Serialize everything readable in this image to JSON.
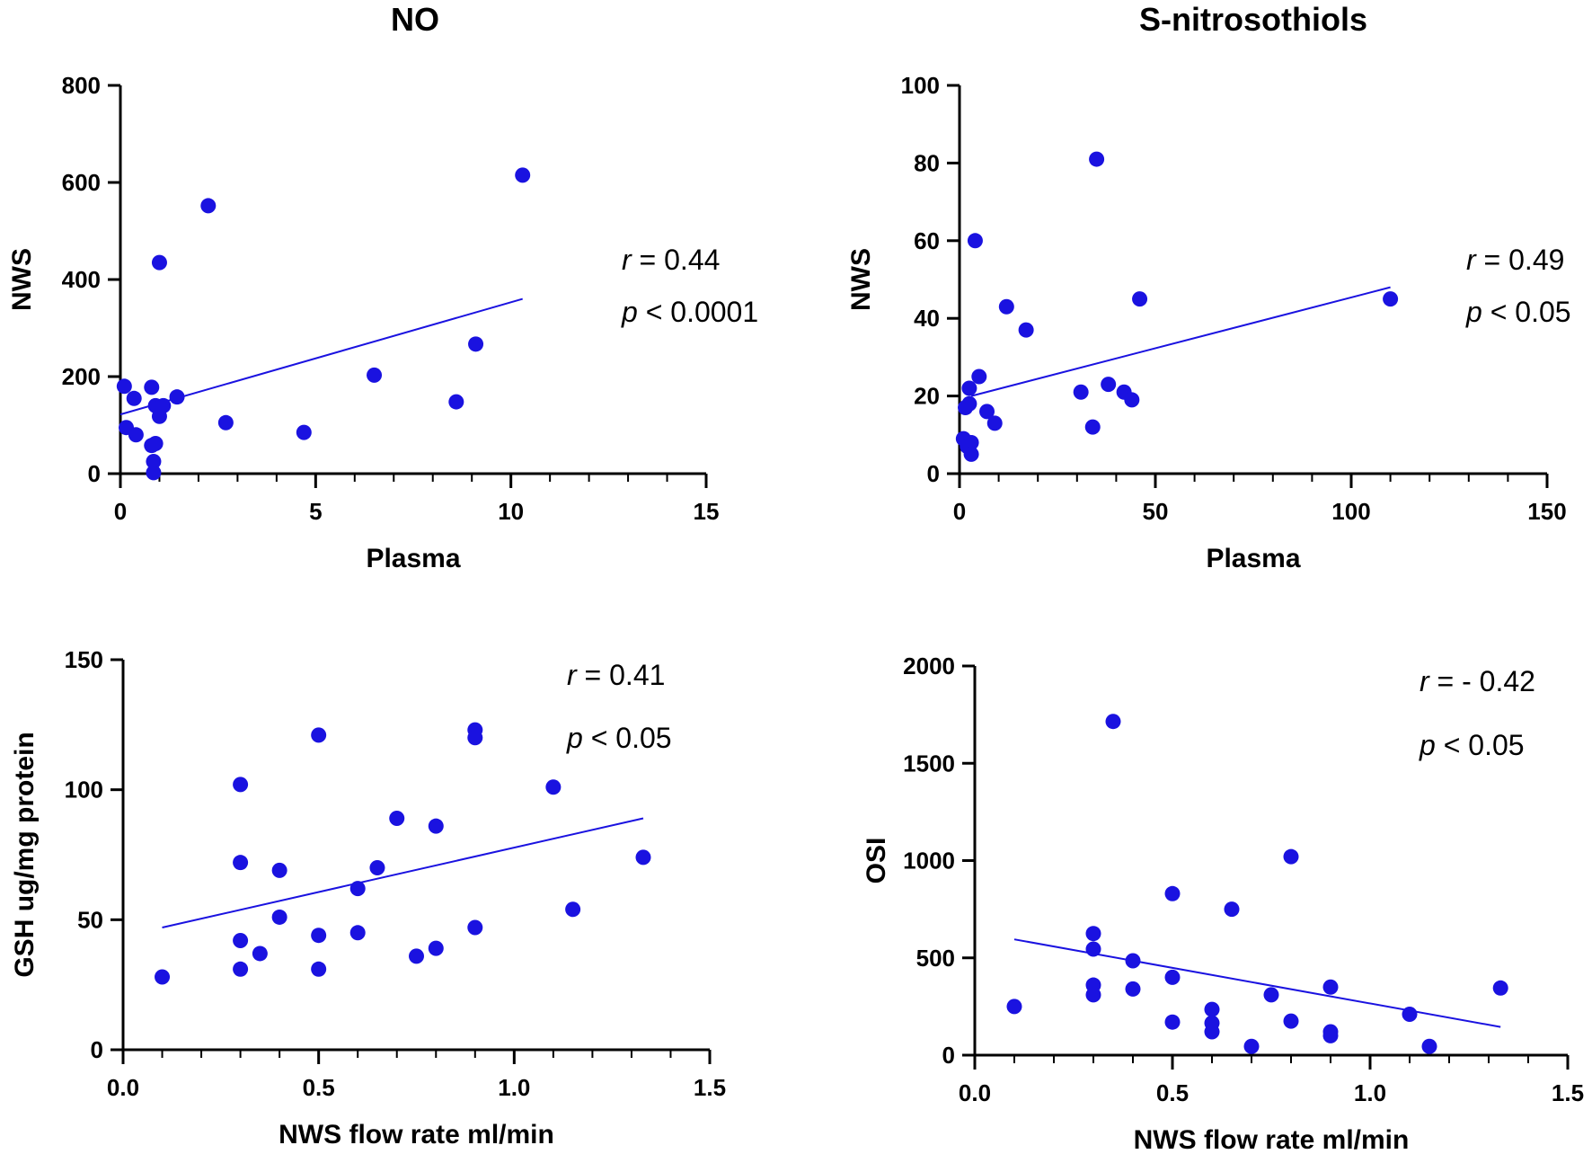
{
  "column_titles": [
    "NO",
    "S-nitrosothiols"
  ],
  "chart_data": [
    {
      "type": "scatter",
      "column": "NO",
      "xlabel": "Plasma",
      "ylabel": "NWS",
      "xlim": [
        0,
        15
      ],
      "ylim": [
        0,
        800
      ],
      "xticks": [
        "0",
        "5",
        "10",
        "15"
      ],
      "yticks": [
        "0",
        "200",
        "400",
        "600",
        "800"
      ],
      "x": [
        0.1,
        0.15,
        0.35,
        0.4,
        0.8,
        0.8,
        0.85,
        0.85,
        0.9,
        0.9,
        1.0,
        1.0,
        1.0,
        1.1,
        1.45,
        2.25,
        2.7,
        4.7,
        6.5,
        8.6,
        9.1,
        10.3
      ],
      "y": [
        180,
        95,
        155,
        80,
        58,
        178,
        25,
        2,
        140,
        62,
        435,
        118,
        135,
        140,
        158,
        552,
        105,
        85,
        203,
        148,
        267,
        615
      ],
      "fit_line": {
        "x": [
          0,
          10.3
        ],
        "y": [
          122,
          360
        ]
      },
      "stats": {
        "r_label": "r",
        "r_value": "= 0.44",
        "p_label": "p",
        "p_value": "< 0.0001"
      }
    },
    {
      "type": "scatter",
      "column": "S-nitrosothiols",
      "xlabel": "Plasma",
      "ylabel": "NWS",
      "xlim": [
        0,
        150
      ],
      "ylim": [
        0,
        100
      ],
      "xticks": [
        "0",
        "50",
        "100",
        "150"
      ],
      "yticks": [
        "0",
        "20",
        "40",
        "60",
        "80",
        "100"
      ],
      "x": [
        1,
        1.5,
        2,
        2.5,
        2.5,
        3,
        3,
        4,
        5,
        7,
        9,
        12,
        17,
        31,
        34,
        35,
        38,
        42,
        44,
        46,
        110
      ],
      "y": [
        9,
        17,
        7,
        22,
        18,
        8,
        5,
        60,
        25,
        16,
        13,
        43,
        37,
        21,
        12,
        81,
        23,
        21,
        19,
        45,
        45
      ],
      "fit_line": {
        "x": [
          3,
          110
        ],
        "y": [
          20,
          48
        ]
      },
      "stats": {
        "r_label": "r",
        "r_value": "= 0.49",
        "p_label": "p",
        "p_value": "< 0.05"
      }
    },
    {
      "type": "scatter",
      "column": "NO",
      "xlabel": "NWS flow rate ml/min",
      "ylabel": "GSH ug/mg protein",
      "xlim": [
        0,
        1.5
      ],
      "ylim": [
        0,
        150
      ],
      "xticks": [
        "0.0",
        "0.5",
        "1.0",
        "1.5"
      ],
      "yticks": [
        "0",
        "50",
        "100",
        "150"
      ],
      "x": [
        0.1,
        0.3,
        0.3,
        0.3,
        0.3,
        0.35,
        0.4,
        0.4,
        0.5,
        0.5,
        0.5,
        0.6,
        0.6,
        0.65,
        0.7,
        0.75,
        0.8,
        0.8,
        0.9,
        0.9,
        0.9,
        1.1,
        1.15,
        1.33
      ],
      "y": [
        28,
        102,
        72,
        42,
        31,
        37,
        69,
        51,
        121,
        44,
        31,
        62,
        45,
        70,
        89,
        36,
        86,
        39,
        123,
        120,
        47,
        101,
        54,
        74
      ],
      "fit_line": {
        "x": [
          0.1,
          1.33
        ],
        "y": [
          47,
          89
        ]
      },
      "stats": {
        "r_label": "r",
        "r_value": "= 0.41",
        "p_label": "p",
        "p_value": "< 0.05"
      }
    },
    {
      "type": "scatter",
      "column": "S-nitrosothiols",
      "xlabel": "NWS flow rate ml/min",
      "ylabel": "OSI",
      "xlim": [
        0,
        1.5
      ],
      "ylim": [
        0,
        2000
      ],
      "xticks": [
        "0.0",
        "0.5",
        "1.0",
        "1.5"
      ],
      "yticks": [
        "0",
        "500",
        "1000",
        "1500",
        "2000"
      ],
      "x": [
        0.1,
        0.3,
        0.3,
        0.3,
        0.3,
        0.35,
        0.4,
        0.4,
        0.5,
        0.5,
        0.5,
        0.6,
        0.6,
        0.6,
        0.65,
        0.7,
        0.75,
        0.8,
        0.8,
        0.9,
        0.9,
        0.9,
        1.1,
        1.15,
        1.33
      ],
      "y": [
        250,
        625,
        545,
        360,
        310,
        1715,
        485,
        340,
        830,
        400,
        170,
        235,
        165,
        120,
        750,
        45,
        310,
        1020,
        175,
        350,
        120,
        100,
        210,
        45,
        345
      ],
      "fit_line": {
        "x": [
          0.1,
          1.33
        ],
        "y": [
          595,
          145
        ]
      },
      "stats": {
        "r_label": "r",
        "r_value": "= - 0.42",
        "p_label": "p",
        "p_value": "< 0.05"
      }
    }
  ],
  "colors": {
    "points": "#1a12e0",
    "fit_line": "#1a12e0",
    "axes": "#000000"
  }
}
